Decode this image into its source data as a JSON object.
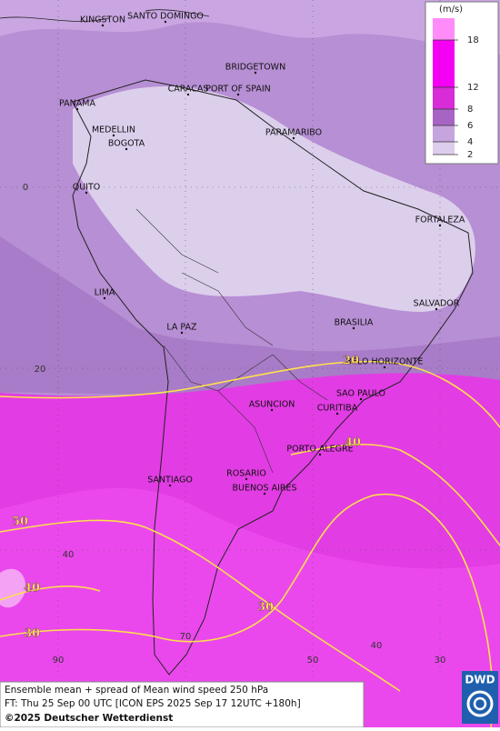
{
  "map": {
    "cities": [
      "KINGSTON",
      "SANTO DOMINGO",
      "BRIDGETOWN",
      "CARACAS",
      "PORT OF SPAIN",
      "PANAMA",
      "MEDELLIN",
      "BOGOTA",
      "PARAMARIBO",
      "QUITO",
      "FORTALEZA",
      "LIMA",
      "SALVADOR",
      "LA PAZ",
      "BRASILIA",
      "BELO HORIZONTE",
      "SAO PAULO",
      "ASUNCION",
      "CURITIBA",
      "PORTO ALEGRE",
      "ROSARIO",
      "SANTIAGO",
      "BUENOS AIRES"
    ],
    "contour_labels": [
      "20",
      "40",
      "50",
      "40",
      "30",
      "30"
    ],
    "grid_labels": [
      "0",
      "20",
      "40",
      "90",
      "70",
      "50",
      "40",
      "30"
    ]
  },
  "legend": {
    "unit": "(m/s)",
    "ticks": [
      "18",
      "12",
      "8",
      "6",
      "4",
      "2"
    ]
  },
  "footer": {
    "line1": "Ensemble mean + spread of Mean wind speed 250 hPa",
    "line2": "FT: Thu 25 Sep 00 UTC [ICON EPS 2025 Sep 17 12UTC +180h]",
    "line3": "©2025 Deutscher Wetterdienst"
  },
  "logo": "DWD"
}
